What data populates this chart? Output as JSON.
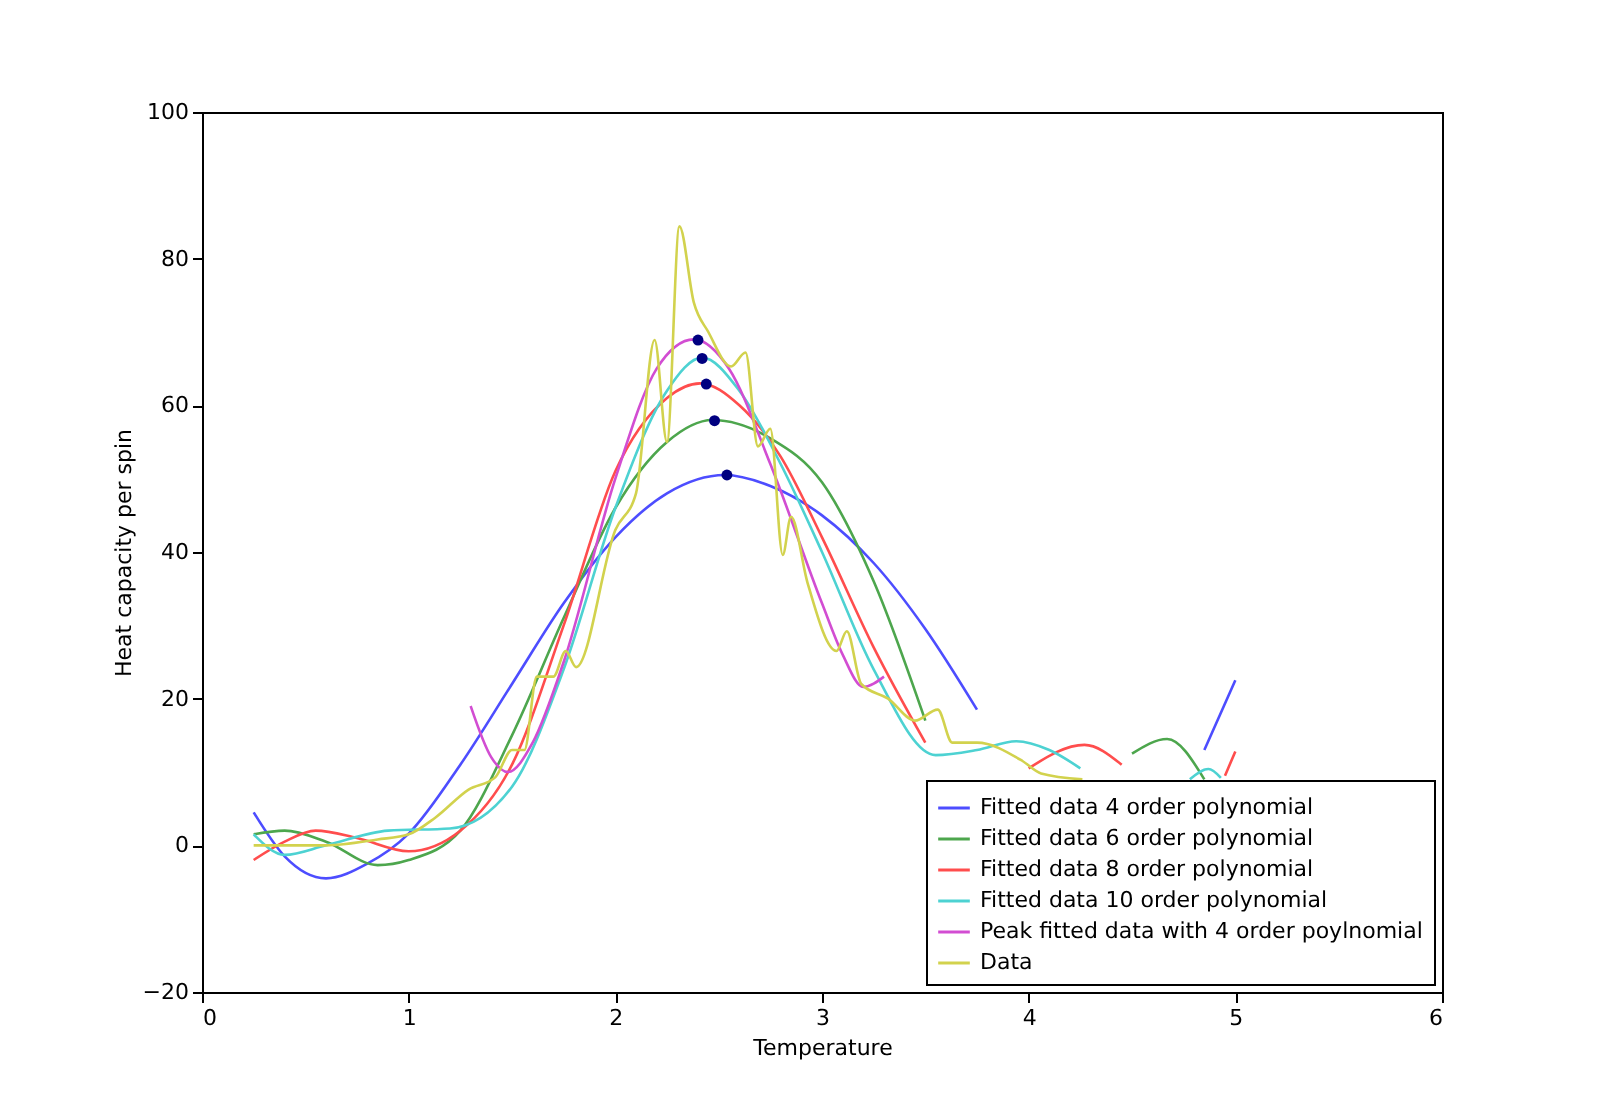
{
  "chart_data": {
    "type": "line",
    "xlabel": "Temperature",
    "ylabel": "Heat capacity per spin",
    "xlim": [
      0,
      6
    ],
    "xticks": [
      0,
      1,
      2,
      3,
      4,
      5,
      6
    ],
    "ylim": [
      -20,
      100
    ],
    "yticks": [
      -20,
      0,
      20,
      40,
      60,
      80,
      100
    ],
    "grid": false,
    "legend": "bottom right",
    "line_style": "solid",
    "marker": "none",
    "series": [
      {
        "name": "Fitted data 4 order polynomial",
        "color": "#4d4dff",
        "x": [
          0.25,
          0.4,
          0.6,
          0.8,
          1.0,
          1.25,
          1.5,
          1.75,
          2.0,
          2.25,
          2.53,
          2.75,
          3.0,
          3.25,
          3.5,
          3.75,
          4.0,
          4.2,
          4.5,
          4.75,
          4.85,
          5.0
        ],
        "values": [
          4.5,
          -1.5,
          -4.5,
          -2.5,
          1.6,
          11,
          22,
          33,
          42,
          48,
          50.5,
          49,
          45,
          38.5,
          29.5,
          18.5,
          null,
          null,
          null,
          null,
          13,
          22.5
        ]
      },
      {
        "name": "Fitted data 6 order polynomial",
        "color": "#4da64d",
        "x": [
          0.25,
          0.4,
          0.6,
          0.85,
          1.0,
          1.25,
          1.5,
          1.75,
          2.0,
          2.25,
          2.47,
          2.75,
          3.0,
          3.25,
          3.5,
          3.75,
          4.0,
          4.3,
          4.5,
          4.67,
          4.85
        ],
        "values": [
          1.5,
          2,
          0.5,
          -2.7,
          -2,
          2,
          15,
          31,
          46,
          55,
          58,
          55.5,
          49.5,
          36,
          17,
          null,
          null,
          null,
          12.5,
          14.5,
          9
        ]
      },
      {
        "name": "Fitted data 8 order polynomial",
        "color": "#ff4d4d",
        "x": [
          0.25,
          0.4,
          0.55,
          0.75,
          1.0,
          1.25,
          1.5,
          1.75,
          2.0,
          2.25,
          2.41,
          2.6,
          2.8,
          3.0,
          3.25,
          3.5,
          3.77,
          4.0,
          4.27,
          4.45,
          4.6,
          4.95,
          5.0
        ],
        "values": [
          -2,
          0.5,
          2,
          1,
          -0.8,
          2,
          11,
          30,
          51,
          61,
          63,
          60,
          53,
          42,
          27,
          14,
          null,
          10.5,
          13.7,
          11,
          null,
          9.5,
          12.8
        ]
      },
      {
        "name": "Fitted data 10 order polynomial",
        "color": "#4dd2d2",
        "x": [
          0.25,
          0.4,
          0.6,
          0.9,
          1.2,
          1.5,
          1.75,
          2.0,
          2.25,
          2.42,
          2.6,
          2.8,
          3.0,
          3.25,
          3.55,
          3.75,
          3.94,
          4.1,
          4.25,
          4.4,
          4.6,
          4.78,
          4.87,
          4.93
        ],
        "values": [
          1.5,
          -1.3,
          0,
          2,
          2.3,
          8,
          24,
          46,
          62,
          66.5,
          62,
          52,
          40,
          24,
          12.3,
          13,
          14.2,
          13,
          10.5,
          null,
          null,
          9,
          10.4,
          9.2
        ]
      },
      {
        "name": "Peak fitted data with 4 order poylnomial",
        "color": "#d24dd2",
        "x": [
          1.3,
          1.4,
          1.48,
          1.6,
          1.75,
          2.0,
          2.2,
          2.38,
          2.55,
          2.75,
          3.0,
          3.1,
          3.2,
          3.3
        ],
        "values": [
          19,
          12,
          10,
          14,
          25,
          50,
          65,
          69,
          65,
          52,
          33,
          26,
          21.6,
          23
        ]
      },
      {
        "name": "Data",
        "color": "#d2d24d",
        "x": [
          0.25,
          0.6,
          0.85,
          1.0,
          1.13,
          1.29,
          1.42,
          1.5,
          1.56,
          1.62,
          1.7,
          1.76,
          1.81,
          2.0,
          2.1,
          2.19,
          2.25,
          2.31,
          2.38,
          2.45,
          2.56,
          2.63,
          2.69,
          2.75,
          2.81,
          2.85,
          2.93,
          3.07,
          3.12,
          3.19,
          3.32,
          3.45,
          3.56,
          3.63,
          3.75,
          3.97,
          4.06,
          4.26
        ],
        "values": [
          0,
          0,
          0.8,
          1.5,
          3.8,
          7.6,
          9.3,
          13,
          13,
          23,
          23,
          26.5,
          24.3,
          43,
          48,
          68.9,
          55,
          84.4,
          74,
          70,
          65.3,
          67.2,
          54.4,
          56.8,
          39.6,
          44.8,
          35.8,
          26.5,
          29.2,
          22,
          20,
          17,
          18.5,
          14,
          14,
          11.5,
          9.8,
          9
        ]
      },
      {
        "type": "scatter",
        "marker": "circle",
        "color": "#000080",
        "x": [
          2.54,
          2.48,
          2.44,
          2.42,
          2.4
        ],
        "values": [
          50.5,
          57.9,
          62.9,
          66.4,
          68.9
        ]
      }
    ]
  }
}
